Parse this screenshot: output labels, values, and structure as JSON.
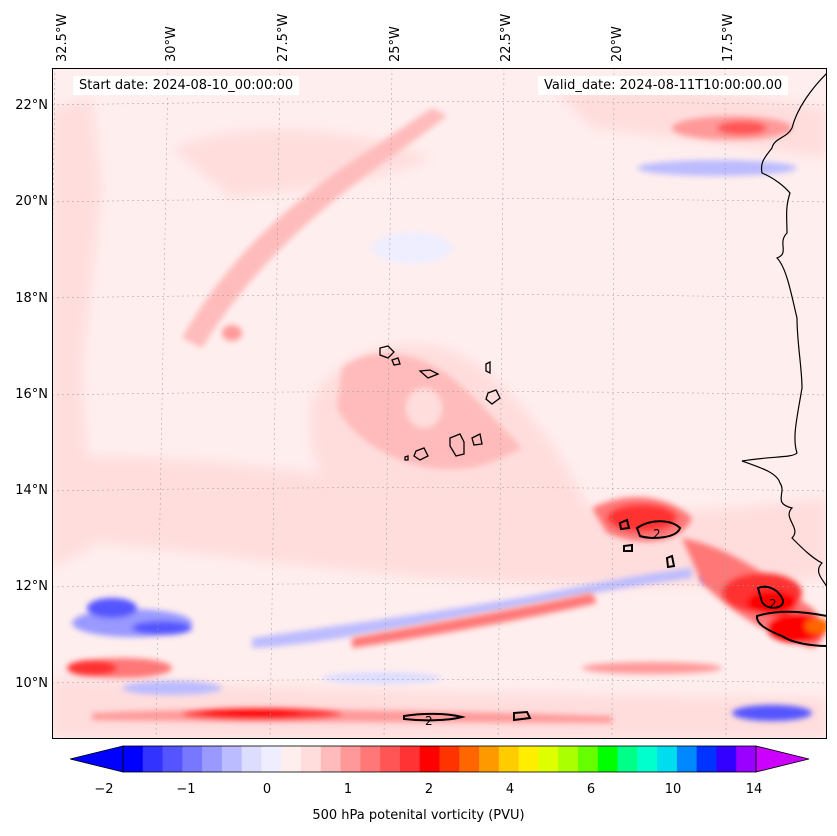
{
  "map": {
    "start_date": "Start date: 2024-08-10_00:00:00",
    "valid_date": "Valid_date: 2024-08-11T10:00:00.00",
    "lon_labels": [
      "32.5°W",
      "30°W",
      "27.5°W",
      "25°W",
      "22.5°W",
      "20°W",
      "17.5°W"
    ],
    "lat_labels": [
      "22°N",
      "20°N",
      "18°N",
      "16°N",
      "14°N",
      "12°N",
      "10°N"
    ],
    "contour_label": "2"
  },
  "colorbar": {
    "label": "500 hPa potenital vorticity (PVU)",
    "ticks": [
      "−2",
      "−1",
      "0",
      "1",
      "2",
      "4",
      "6",
      "10",
      "14"
    ],
    "colors": [
      "#0000ff",
      "#3333ff",
      "#5555ff",
      "#7777ff",
      "#9999ff",
      "#bbbbff",
      "#ddddff",
      "#eeeeff",
      "#ffeeee",
      "#ffdddd",
      "#ffbbbb",
      "#ff9999",
      "#ff7777",
      "#ff5555",
      "#ff3333",
      "#ff0000",
      "#ff3300",
      "#ff6600",
      "#ff9900",
      "#ffcc00",
      "#ffee00",
      "#ddff00",
      "#aaff00",
      "#66ff00",
      "#00ff00",
      "#00ff88",
      "#00ffcc",
      "#00ddee",
      "#0088ff",
      "#0033ff",
      "#3300ff",
      "#9900ff"
    ]
  }
}
